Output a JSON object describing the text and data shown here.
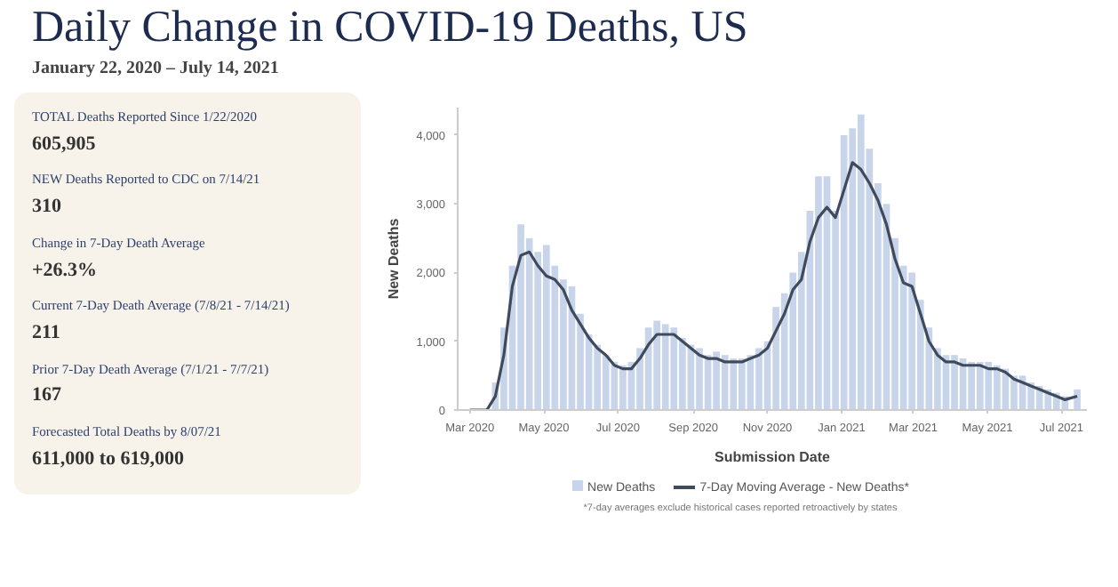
{
  "chart_data": [
    {
      "type": "other",
      "title": "Daily Change in COVID-19 Deaths, US",
      "subtitle": "January 22, 2020 – July 14, 2021"
    },
    {
      "type": "other",
      "annotations": [
        "TOTAL Deaths Reported Since 1/22/2020",
        "605,905",
        "NEW Deaths Reported to CDC on 7/14/21",
        "310",
        "Change in 7-Day Death Average",
        "+26.3%",
        "Current 7-Day Death Average (7/8/21 - 7/14/21)",
        "211",
        "Prior 7-Day Death Average (7/1/21 - 7/7/21)",
        "167",
        "Forecasted Total Deaths by 8/07/21",
        "611,000 to 619,000"
      ]
    },
    {
      "type": "bar",
      "xlabel": "Submission Date",
      "ylabel": "New Deaths",
      "annotations": [
        "*7-day averages exclude historical cases reported retroactively by states"
      ],
      "x": [
        "2020-03-01",
        "2020-03-08",
        "2020-03-15",
        "2020-03-22",
        "2020-03-29",
        "2020-04-05",
        "2020-04-12",
        "2020-04-19",
        "2020-04-26",
        "2020-05-03",
        "2020-05-10",
        "2020-05-17",
        "2020-05-24",
        "2020-05-31",
        "2020-06-07",
        "2020-06-14",
        "2020-06-21",
        "2020-06-28",
        "2020-07-05",
        "2020-07-12",
        "2020-07-19",
        "2020-07-26",
        "2020-08-02",
        "2020-08-09",
        "2020-08-16",
        "2020-08-23",
        "2020-08-30",
        "2020-09-06",
        "2020-09-13",
        "2020-09-20",
        "2020-09-27",
        "2020-10-04",
        "2020-10-11",
        "2020-10-18",
        "2020-10-25",
        "2020-11-01",
        "2020-11-08",
        "2020-11-15",
        "2020-11-22",
        "2020-11-29",
        "2020-12-06",
        "2020-12-13",
        "2020-12-20",
        "2020-12-27",
        "2021-01-03",
        "2021-01-10",
        "2021-01-17",
        "2021-01-24",
        "2021-01-31",
        "2021-02-07",
        "2021-02-14",
        "2021-02-21",
        "2021-02-28",
        "2021-03-07",
        "2021-03-14",
        "2021-03-21",
        "2021-03-28",
        "2021-04-04",
        "2021-04-11",
        "2021-04-18",
        "2021-04-25",
        "2021-05-02",
        "2021-05-09",
        "2021-05-16",
        "2021-05-23",
        "2021-05-30",
        "2021-06-06",
        "2021-06-13",
        "2021-06-20",
        "2021-06-27",
        "2021-07-04",
        "2021-07-14"
      ],
      "series": [
        {
          "name": "New Deaths",
          "type": "bar",
          "color": "#c7d4ea",
          "values": [
            0,
            0,
            null,
            400,
            1200,
            2100,
            2700,
            2500,
            2300,
            2400,
            2100,
            1900,
            1800,
            1400,
            1100,
            950,
            800,
            700,
            650,
            700,
            900,
            1200,
            1300,
            1250,
            1200,
            1050,
            950,
            900,
            800,
            850,
            800,
            750,
            750,
            800,
            900,
            1000,
            1500,
            1700,
            2000,
            2300,
            2900,
            3400,
            3400,
            2900,
            4000,
            4100,
            4300,
            3800,
            3300,
            3000,
            2500,
            2100,
            2000,
            1600,
            1200,
            900,
            800,
            800,
            750,
            700,
            700,
            700,
            650,
            600,
            500,
            500,
            400,
            350,
            300,
            250,
            200,
            300
          ]
        },
        {
          "name": "7-Day Moving Average - New Deaths*",
          "type": "line",
          "color": "#3f4b5c",
          "values": [
            0,
            0,
            0,
            200,
            800,
            1800,
            2250,
            2300,
            2100,
            1950,
            1900,
            1750,
            1450,
            1250,
            1050,
            900,
            800,
            650,
            600,
            600,
            750,
            950,
            1100,
            1100,
            1100,
            1000,
            900,
            800,
            750,
            750,
            700,
            700,
            700,
            750,
            800,
            900,
            1150,
            1400,
            1750,
            1900,
            2450,
            2800,
            2950,
            2800,
            3200,
            3600,
            3500,
            3300,
            3050,
            2700,
            2200,
            1850,
            1800,
            1400,
            1000,
            800,
            700,
            700,
            650,
            650,
            650,
            600,
            600,
            550,
            450,
            400,
            350,
            300,
            250,
            200,
            150,
            200
          ]
        }
      ],
      "xlim": [
        "2020-02-20",
        "2021-07-22"
      ],
      "xticks": [
        {
          "value": "2020-03-01",
          "label": "Mar 2020"
        },
        {
          "value": "2020-05-01",
          "label": "May 2020"
        },
        {
          "value": "2020-07-01",
          "label": "Jul 2020"
        },
        {
          "value": "2020-09-01",
          "label": "Sep 2020"
        },
        {
          "value": "2020-11-01",
          "label": "Nov 2020"
        },
        {
          "value": "2021-01-01",
          "label": "Jan 2021"
        },
        {
          "value": "2021-03-01",
          "label": "Mar 2021"
        },
        {
          "value": "2021-05-01",
          "label": "May 2021"
        },
        {
          "value": "2021-07-01",
          "label": "Jul 2021"
        }
      ],
      "ylim": [
        0,
        4400
      ],
      "yticks": [
        0,
        {
          "value": 1000,
          "label": "1,000"
        },
        {
          "value": 2000,
          "label": "2,000"
        },
        {
          "value": 3000,
          "label": "3,000"
        },
        {
          "value": 4000,
          "label": "4,000"
        }
      ],
      "grid": false,
      "legend": "bottom",
      "marker": "none",
      "line_style": "solid"
    }
  ]
}
